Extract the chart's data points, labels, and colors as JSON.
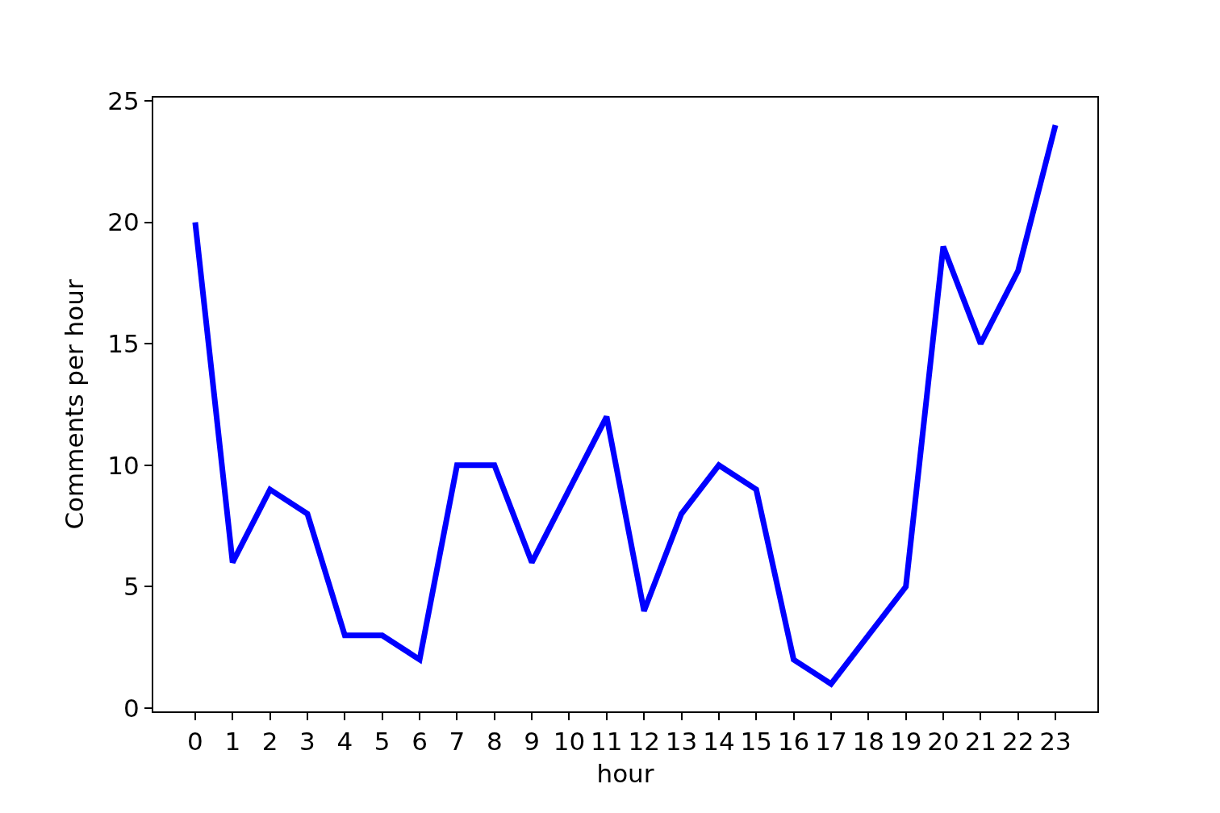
{
  "chart_data": {
    "type": "line",
    "xlabel": "hour",
    "ylabel": "Comments per hour",
    "x": [
      0,
      1,
      2,
      3,
      4,
      5,
      6,
      7,
      8,
      9,
      10,
      11,
      12,
      13,
      14,
      15,
      16,
      17,
      18,
      19,
      20,
      21,
      22,
      23
    ],
    "series": [
      {
        "color": "#0000ff",
        "values": [
          20,
          6,
          9,
          8,
          3,
          3,
          2,
          10,
          10,
          6,
          9,
          12,
          4,
          8,
          10,
          9,
          2,
          1,
          3,
          5,
          19,
          15,
          18,
          24
        ]
      }
    ],
    "xlim": [
      -1.12,
      24.12
    ],
    "xticks": [
      0,
      1,
      2,
      3,
      4,
      5,
      6,
      7,
      8,
      9,
      10,
      11,
      12,
      13,
      14,
      15,
      16,
      17,
      18,
      19,
      20,
      21,
      22,
      23
    ],
    "ylim": [
      -0.13,
      25.13
    ],
    "yticks": [
      0,
      5,
      10,
      15,
      20,
      25
    ],
    "grid": false,
    "marker": "none",
    "line_style": "solid"
  }
}
